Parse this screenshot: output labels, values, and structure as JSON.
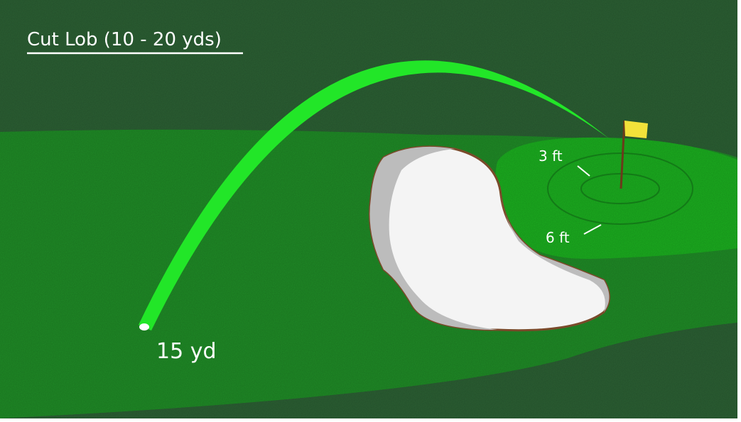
{
  "title": "Cut Lob (10 - 20 yds)",
  "labels": {
    "distance": "15 yd",
    "inner_ring": "3 ft",
    "outer_ring": "6 ft"
  }
}
